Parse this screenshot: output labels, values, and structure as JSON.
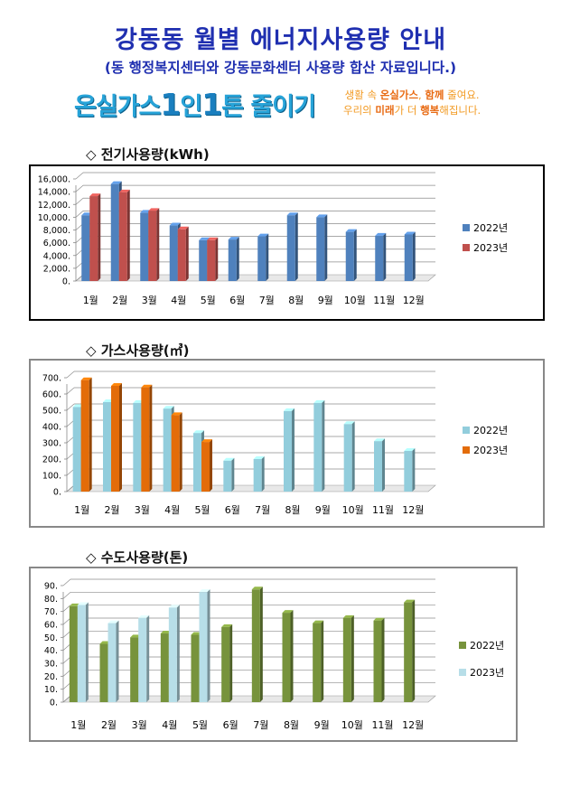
{
  "header": {
    "title": "강동동 월별 에너지사용량 안내",
    "subtitle": "(동 행정복지센터와 강동문화센터 사용량 합산 자료입니다.)",
    "slogan_a": "온실가스",
    "slogan_num1": "1",
    "slogan_b": "인",
    "slogan_num2": "1",
    "slogan_c": "톤 줄이기",
    "tagline_line1_a": "생활 속 ",
    "tagline_line1_b": "온실가스",
    "tagline_line1_c": ", ",
    "tagline_line1_d": "함께",
    "tagline_line1_e": " 줄여요.",
    "tagline_line2_a": "우리의 ",
    "tagline_line2_b": "미래",
    "tagline_line2_c": "가 더 ",
    "tagline_line2_d": "행복",
    "tagline_line2_e": "해집니다."
  },
  "chart_data": [
    {
      "type": "bar",
      "title": "◇ 전기사용량(kWh)",
      "categories": [
        "1월",
        "2월",
        "3월",
        "4월",
        "5월",
        "6월",
        "7월",
        "8월",
        "9월",
        "10월",
        "11월",
        "12월"
      ],
      "yticks": [
        "0.",
        "2,000.",
        "4,000.",
        "6,000.",
        "8,000.",
        "10,000.",
        "12,000.",
        "14,000.",
        "16,000."
      ],
      "ylim": [
        0,
        16000
      ],
      "grid": true,
      "legend": "right",
      "series": [
        {
          "name": "2022년",
          "color": "#4f81bd",
          "values": [
            10300,
            15200,
            10700,
            8700,
            6400,
            6500,
            7000,
            10300,
            10000,
            7700,
            7100,
            7300
          ]
        },
        {
          "name": "2023년",
          "color": "#c0504d",
          "values": [
            13300,
            13900,
            11000,
            8100,
            6400,
            null,
            null,
            null,
            null,
            null,
            null,
            null
          ]
        }
      ]
    },
    {
      "type": "bar",
      "title": "◇ 가스사용량(㎥)",
      "categories": [
        "1월",
        "2월",
        "3월",
        "4월",
        "5월",
        "6월",
        "7월",
        "8월",
        "9월",
        "10월",
        "11월",
        "12월"
      ],
      "yticks": [
        "0.",
        "100.",
        "200.",
        "300.",
        "400.",
        "500.",
        "600.",
        "700."
      ],
      "ylim": [
        0,
        700
      ],
      "grid": true,
      "legend": "right",
      "series": [
        {
          "name": "2022년",
          "color": "#92cddc",
          "values": [
            520,
            550,
            545,
            510,
            360,
            190,
            200,
            495,
            545,
            415,
            310,
            250
          ]
        },
        {
          "name": "2023년",
          "color": "#e36c09",
          "values": [
            685,
            650,
            640,
            470,
            305,
            null,
            null,
            null,
            null,
            null,
            null,
            null
          ]
        }
      ]
    },
    {
      "type": "bar",
      "title": "◇ 수도사용량(톤)",
      "categories": [
        "1월",
        "2월",
        "3월",
        "4월",
        "5월",
        "6월",
        "7월",
        "8월",
        "9월",
        "10월",
        "11월",
        "12월"
      ],
      "yticks": [
        "0.",
        "10.",
        "20.",
        "30.",
        "40.",
        "50.",
        "60.",
        "70.",
        "80.",
        "90."
      ],
      "ylim": [
        0,
        90
      ],
      "grid": true,
      "legend": "right",
      "series": [
        {
          "name": "2022년",
          "color": "#77933c",
          "values": [
            74,
            45,
            50,
            53,
            52,
            58,
            87,
            69,
            61,
            65,
            63,
            77
          ]
        },
        {
          "name": "2023년",
          "color": "#b7dee8",
          "values": [
            75,
            61,
            65,
            73,
            85,
            null,
            null,
            null,
            null,
            null,
            null,
            null
          ]
        }
      ]
    }
  ]
}
